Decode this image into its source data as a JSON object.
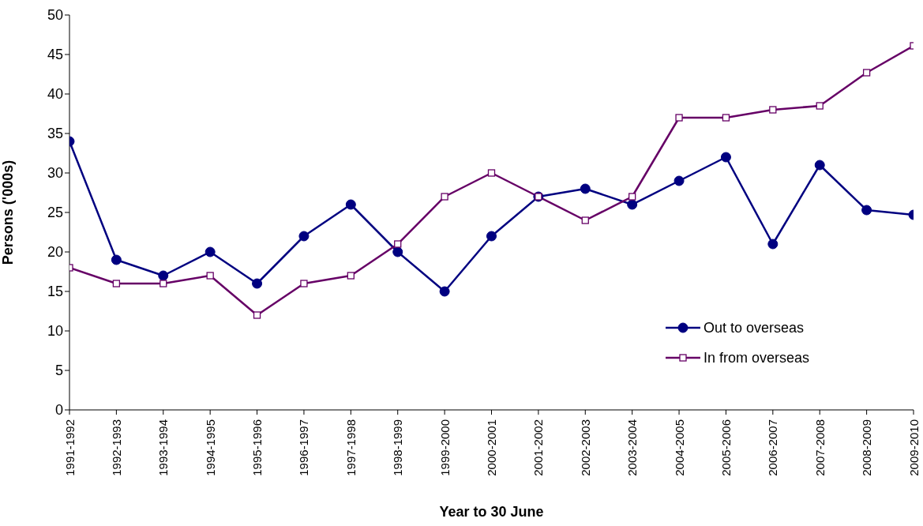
{
  "chart_data": {
    "type": "line",
    "xlabel": "Year to 30 June",
    "ylabel": "Persons ('000s)",
    "categories": [
      "1991-1992",
      "1992-1993",
      "1993-1994",
      "1994-1995",
      "1995-1996",
      "1996-1997",
      "1997-1998",
      "1998-1999",
      "1999-2000",
      "2000-2001",
      "2001-2002",
      "2002-2003",
      "2003-2004",
      "2004-2005",
      "2005-2006",
      "2006-2007",
      "2007-2008",
      "2008-2009",
      "2009-2010"
    ],
    "series": [
      {
        "name": "Out to overseas",
        "color": "#000080",
        "marker": "circle",
        "values": [
          34,
          19,
          17,
          20,
          16,
          22,
          26,
          20,
          15,
          22,
          27,
          28,
          26,
          29,
          32,
          21,
          31,
          25.3,
          24.7
        ]
      },
      {
        "name": "In from overseas",
        "color": "#660066",
        "marker": "square",
        "values": [
          18,
          16,
          16,
          17,
          12,
          16,
          17,
          21,
          27,
          30,
          27,
          24,
          27,
          37,
          37,
          38,
          38.5,
          42.7,
          46.1
        ]
      }
    ],
    "ylim": [
      0,
      50
    ],
    "yticks": [
      0,
      5,
      10,
      15,
      20,
      25,
      30,
      35,
      40,
      45,
      50
    ],
    "grid": false,
    "legend": "right"
  }
}
